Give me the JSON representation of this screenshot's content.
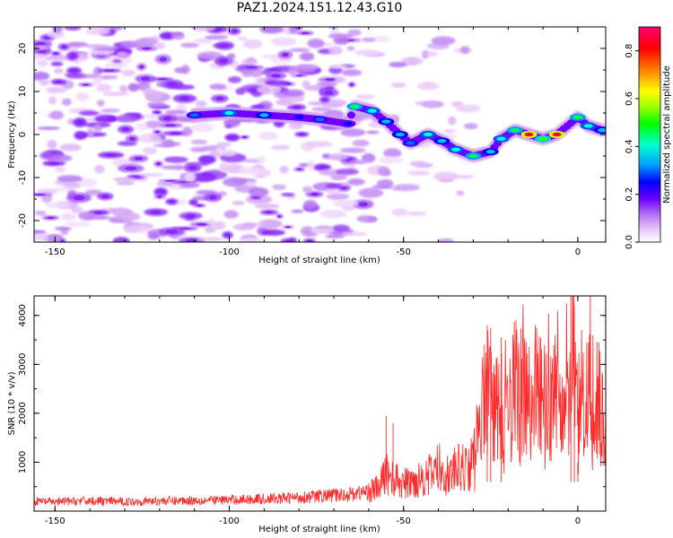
{
  "figure_title": "PAZ1.2024.151.12.43.G10",
  "chart_data": [
    {
      "type": "heatmap",
      "title": "PAZ1.2024.151.12.43.G10",
      "xlabel": "Height of straight line (km)",
      "ylabel": "Frequency (Hz)",
      "xlim": [
        -156,
        8
      ],
      "ylim": [
        -25,
        25
      ],
      "x_ticks": [
        "-150",
        "-100",
        "-50",
        "0"
      ],
      "y_ticks": [
        "-20",
        "-10",
        "0",
        "10",
        "20"
      ],
      "colorbar": {
        "label": "Normalized spectral amplitude",
        "range": [
          0,
          0.9
        ],
        "ticks": [
          "0.0",
          "0.2",
          "0.4",
          "0.6",
          "0.8"
        ],
        "colormap": "rainbow",
        "colors": [
          "#ffffff",
          "#e8c4f8",
          "#b070f0",
          "#7000ff",
          "#0000ff",
          "#00a0ff",
          "#00ffd0",
          "#00ff00",
          "#a0ff00",
          "#ffff00",
          "#ff8000",
          "#ff0000",
          "#ff0070"
        ]
      },
      "ridge": [
        {
          "x": -110,
          "y": 4.5,
          "v": 0.35
        },
        {
          "x": -100,
          "y": 5,
          "v": 0.45
        },
        {
          "x": -90,
          "y": 4.5,
          "v": 0.4
        },
        {
          "x": -80,
          "y": 4,
          "v": 0.3
        },
        {
          "x": -74,
          "y": 3.5,
          "v": 0.35
        },
        {
          "x": -66,
          "y": 2.5,
          "v": 0.3
        },
        {
          "x": -64,
          "y": 6.5,
          "v": 0.5
        },
        {
          "x": -59,
          "y": 5.5,
          "v": 0.45
        },
        {
          "x": -55,
          "y": 3,
          "v": 0.4
        },
        {
          "x": -51,
          "y": 0,
          "v": 0.4
        },
        {
          "x": -48,
          "y": -2,
          "v": 0.35
        },
        {
          "x": -43,
          "y": 0,
          "v": 0.45
        },
        {
          "x": -39,
          "y": -1.5,
          "v": 0.4
        },
        {
          "x": -35,
          "y": -3.5,
          "v": 0.45
        },
        {
          "x": -30,
          "y": -5,
          "v": 0.5
        },
        {
          "x": -25,
          "y": -4,
          "v": 0.4
        },
        {
          "x": -22,
          "y": -1,
          "v": 0.45
        },
        {
          "x": -18,
          "y": 1,
          "v": 0.5
        },
        {
          "x": -14,
          "y": 0,
          "v": 0.85
        },
        {
          "x": -10,
          "y": -1,
          "v": 0.55
        },
        {
          "x": -6,
          "y": 0,
          "v": 0.85
        },
        {
          "x": 0,
          "y": 4,
          "v": 0.5
        },
        {
          "x": 3,
          "y": 2,
          "v": 0.45
        },
        {
          "x": 7,
          "y": 1,
          "v": 0.4
        }
      ]
    },
    {
      "type": "line",
      "xlabel": "Height of straight line (km)",
      "ylabel": "SNR (10 * v/v)",
      "xlim": [
        -156,
        8
      ],
      "ylim": [
        0,
        4400
      ],
      "x_ticks": [
        "-150",
        "-100",
        "-50",
        "0"
      ],
      "y_ticks": [
        "1000",
        "2000",
        "3000",
        "4000"
      ],
      "color": "#ff2a2a",
      "series": [
        {
          "x": [
            -156,
            -150,
            -145,
            -140,
            -135,
            -130,
            -125,
            -120,
            -115,
            -110,
            -105,
            -100,
            -95,
            -90,
            -85,
            -80,
            -75,
            -70,
            -65,
            -60,
            -57,
            -55,
            -53,
            -50,
            -47,
            -45,
            -42,
            -40,
            -37,
            -35,
            -32,
            -30,
            -28,
            -26,
            -24,
            -22,
            -20,
            -18,
            -16,
            -14,
            -12,
            -10,
            -8,
            -6,
            -4,
            -2,
            -1,
            0,
            1,
            2,
            3,
            4,
            5,
            6,
            7,
            8
          ],
          "y": [
            200,
            190,
            200,
            210,
            200,
            190,
            200,
            210,
            210,
            220,
            220,
            230,
            240,
            250,
            260,
            280,
            300,
            320,
            350,
            400,
            480,
            800,
            650,
            550,
            600,
            700,
            750,
            900,
            700,
            850,
            900,
            1000,
            1800,
            2500,
            2000,
            2200,
            1900,
            2600,
            2400,
            2200,
            2500,
            2300,
            2100,
            2400,
            2200,
            2600,
            3600,
            1600,
            2000,
            2400,
            2200,
            2600,
            2300,
            2500,
            2200,
            2000
          ]
        }
      ]
    }
  ]
}
